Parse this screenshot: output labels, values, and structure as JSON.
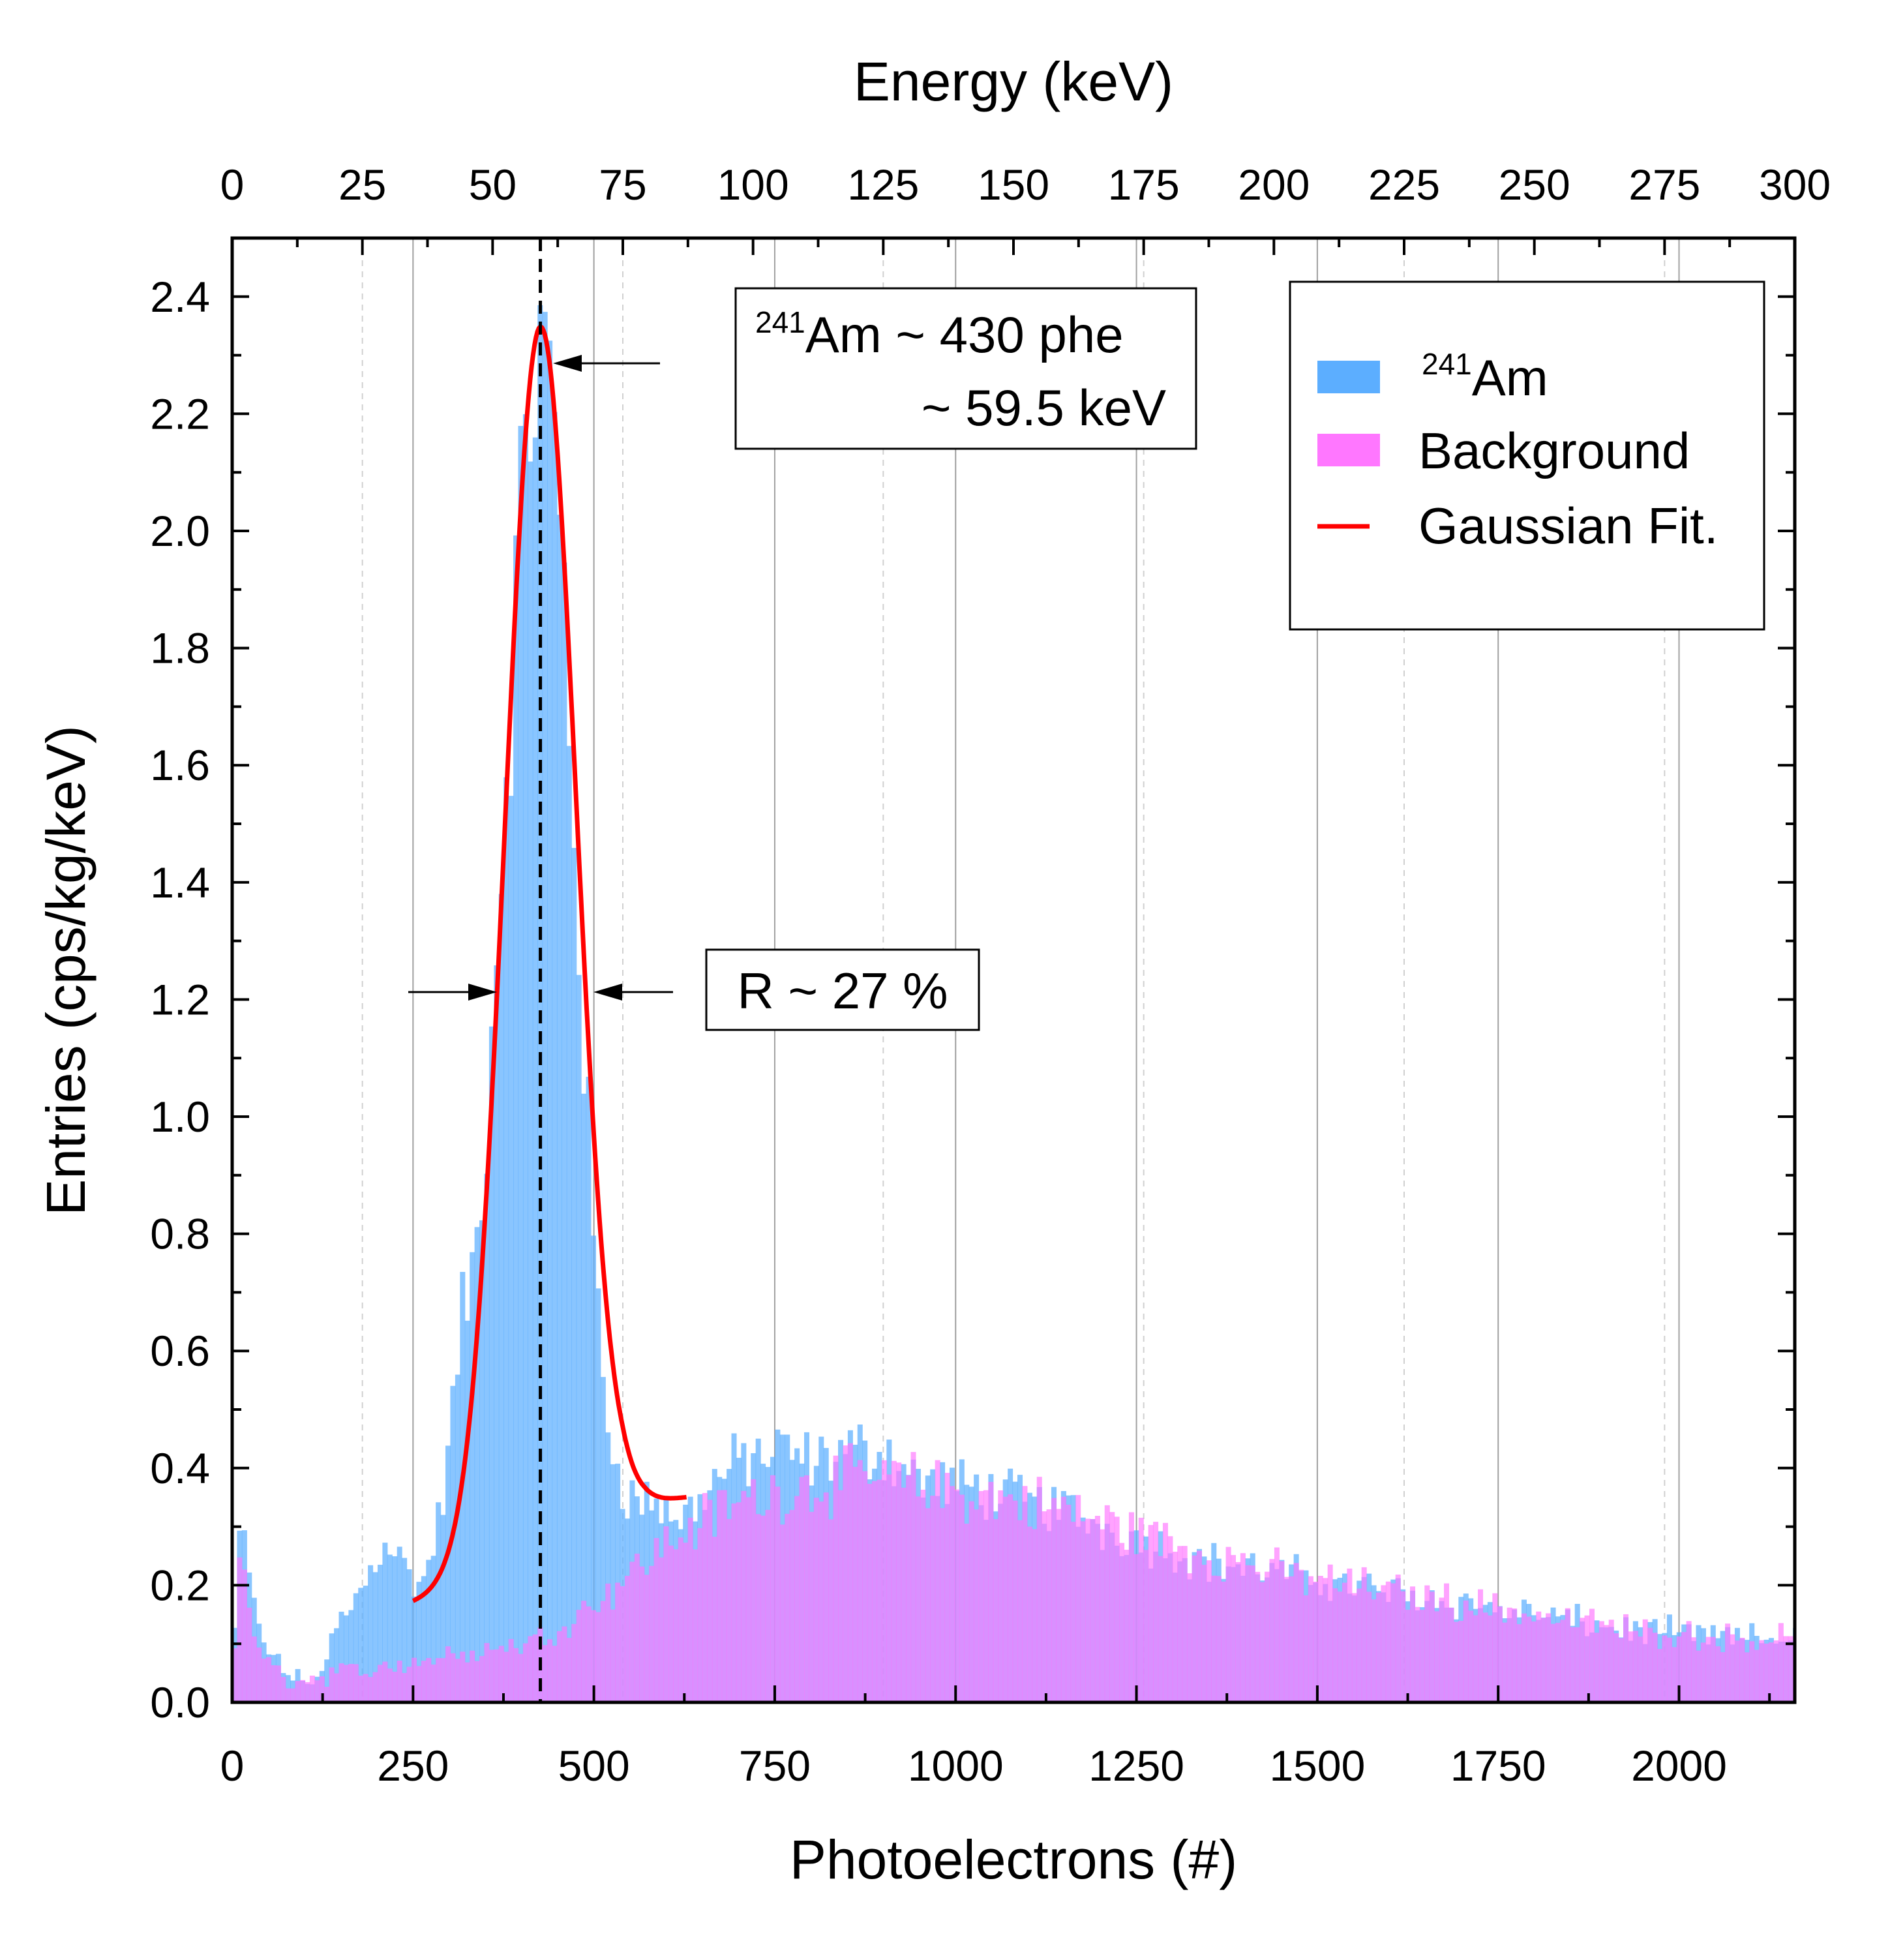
{
  "chart_data": {
    "type": "bar",
    "title": "",
    "xlabel": "Photoelectrons (#)",
    "x2label": "Energy (keV)",
    "ylabel": "Entries (cps/kg/keV)",
    "xlim": [
      0,
      2160
    ],
    "x2lim": [
      0,
      300
    ],
    "ylim": [
      0,
      2.5
    ],
    "grid": "vertical",
    "legend_position": "top-right",
    "x_ticks": [
      "0",
      "250",
      "500",
      "750",
      "1000",
      "1250",
      "1500",
      "1750",
      "2000"
    ],
    "x2_ticks": [
      "0",
      "25",
      "50",
      "75",
      "100",
      "125",
      "150",
      "175",
      "200",
      "225",
      "250",
      "275",
      "300"
    ],
    "y_ticks": [
      "0.0",
      "0.2",
      "0.4",
      "0.6",
      "0.8",
      "1.0",
      "1.2",
      "1.4",
      "1.6",
      "1.8",
      "2.0",
      "2.2",
      "2.4"
    ],
    "colors": {
      "am241": "#5caeff",
      "background": "#ff77ff",
      "fit": "#ff0000"
    },
    "legend": {
      "am241_sup": "241",
      "am241_base": "Am",
      "background": "Background",
      "fit": "Gaussian Fit."
    },
    "annotations": {
      "peak_line1_sup": "241",
      "peak_line1_base": "Am ~ 430 phe",
      "peak_line2": "~ 59.5 keV",
      "resolution": "R ~ 27 %"
    },
    "bin_width_phe": 6.7,
    "series": [
      {
        "name": "241Am",
        "type": "histogram",
        "profile_x": [
          0,
          6,
          12,
          20,
          30,
          45,
          60,
          75,
          90,
          110,
          125,
          135,
          150,
          170,
          190,
          210,
          222,
          235,
          250,
          270,
          290,
          305,
          320,
          335,
          350,
          365,
          380,
          390,
          400,
          410,
          420,
          430,
          440,
          450,
          460,
          470,
          480,
          490,
          500,
          515,
          530,
          545,
          560,
          575,
          590,
          605,
          620,
          640,
          660,
          680,
          700,
          720,
          740,
          760,
          780,
          800,
          850,
          900,
          950,
          1000,
          1050,
          1100,
          1150,
          1200,
          1250,
          1300,
          1350,
          1400,
          1450,
          1500,
          1550,
          1600,
          1650,
          1700,
          1750,
          1800,
          1850,
          1900,
          1950,
          2000,
          2050,
          2100,
          2160
        ],
        "profile_y": [
          0.04,
          0.2,
          0.3,
          0.26,
          0.16,
          0.1,
          0.07,
          0.05,
          0.04,
          0.04,
          0.05,
          0.1,
          0.14,
          0.18,
          0.22,
          0.28,
          0.27,
          0.24,
          0.2,
          0.22,
          0.34,
          0.5,
          0.68,
          0.74,
          0.97,
          1.3,
          1.65,
          1.85,
          2.05,
          2.22,
          2.3,
          2.3,
          2.22,
          2.05,
          1.85,
          1.58,
          1.3,
          1.02,
          0.76,
          0.52,
          0.41,
          0.36,
          0.34,
          0.35,
          0.34,
          0.32,
          0.31,
          0.34,
          0.37,
          0.39,
          0.41,
          0.42,
          0.42,
          0.43,
          0.42,
          0.41,
          0.43,
          0.43,
          0.38,
          0.37,
          0.36,
          0.34,
          0.33,
          0.3,
          0.28,
          0.26,
          0.24,
          0.23,
          0.22,
          0.21,
          0.2,
          0.19,
          0.18,
          0.17,
          0.16,
          0.15,
          0.14,
          0.13,
          0.12,
          0.12,
          0.11,
          0.11,
          0.11
        ],
        "noise": 0.035
      },
      {
        "name": "Background",
        "type": "histogram",
        "profile_x": [
          0,
          6,
          12,
          20,
          30,
          45,
          60,
          75,
          90,
          110,
          150,
          200,
          250,
          300,
          350,
          400,
          430,
          450,
          500,
          550,
          600,
          650,
          700,
          750,
          800,
          850,
          900,
          950,
          1000,
          1050,
          1100,
          1150,
          1200,
          1250,
          1300,
          1350,
          1400,
          1450,
          1500,
          1550,
          1600,
          1650,
          1700,
          1750,
          1800,
          1850,
          1900,
          1950,
          2000,
          2050,
          2100,
          2160
        ],
        "profile_y": [
          0.02,
          0.16,
          0.24,
          0.2,
          0.12,
          0.07,
          0.05,
          0.04,
          0.04,
          0.04,
          0.05,
          0.06,
          0.07,
          0.08,
          0.09,
          0.1,
          0.11,
          0.13,
          0.17,
          0.22,
          0.27,
          0.31,
          0.34,
          0.36,
          0.37,
          0.38,
          0.38,
          0.37,
          0.36,
          0.35,
          0.34,
          0.33,
          0.31,
          0.29,
          0.27,
          0.25,
          0.24,
          0.22,
          0.21,
          0.2,
          0.19,
          0.18,
          0.17,
          0.16,
          0.15,
          0.14,
          0.13,
          0.12,
          0.12,
          0.11,
          0.11,
          0.11
        ],
        "noise": 0.04
      },
      {
        "name": "Gaussian Fit.",
        "type": "line",
        "fit_range": [
          250,
          628
        ],
        "amplitude": 2.12,
        "mean": 426,
        "sigma": 48.9,
        "baseline_x": [
          250,
          430,
          540,
          570,
          600,
          628
        ],
        "baseline_y": [
          0.17,
          0.23,
          0.33,
          0.34,
          0.345,
          0.35
        ]
      }
    ]
  }
}
